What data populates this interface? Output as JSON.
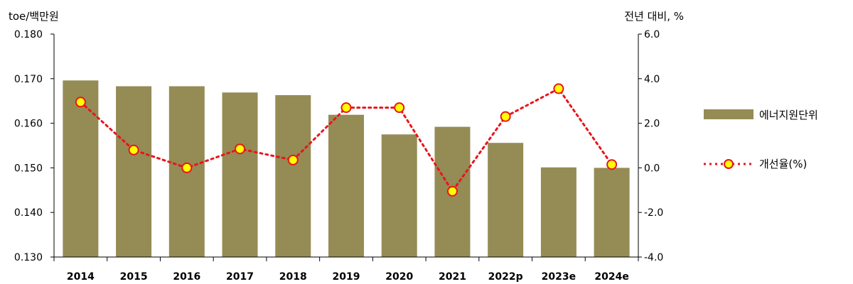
{
  "chart_data": {
    "type": "bar",
    "categories": [
      "2014",
      "2015",
      "2016",
      "2017",
      "2018",
      "2019",
      "2020",
      "2021",
      "2022p",
      "2023e",
      "2024e"
    ],
    "left_axis": {
      "unit": "toe/백만원",
      "ylim": [
        0.13,
        0.18
      ],
      "ticks": [
        "0.130",
        "0.140",
        "0.150",
        "0.160",
        "0.170",
        "0.180"
      ]
    },
    "right_axis": {
      "unit": "전년 대비, %",
      "ylim": [
        -4.0,
        6.0
      ],
      "ticks": [
        "-4.0",
        "-2.0",
        "0.0",
        "2.0",
        "4.0",
        "6.0"
      ]
    },
    "series": [
      {
        "name": "에너지원단위",
        "type": "bar",
        "axis": "left",
        "color": "#958B55",
        "values": [
          0.1696,
          0.1683,
          0.1683,
          0.1669,
          0.1663,
          0.1619,
          0.1575,
          0.1592,
          0.1556,
          0.1501,
          0.15
        ]
      },
      {
        "name": "개선율(%)",
        "type": "line",
        "axis": "right",
        "color": "#E8151B",
        "marker_fill": "#FFFF00",
        "values": [
          2.95,
          0.8,
          0.0,
          0.85,
          0.35,
          2.7,
          2.7,
          -1.05,
          2.3,
          3.55,
          0.15
        ]
      }
    ],
    "legend_position": "right",
    "grid": false
  }
}
